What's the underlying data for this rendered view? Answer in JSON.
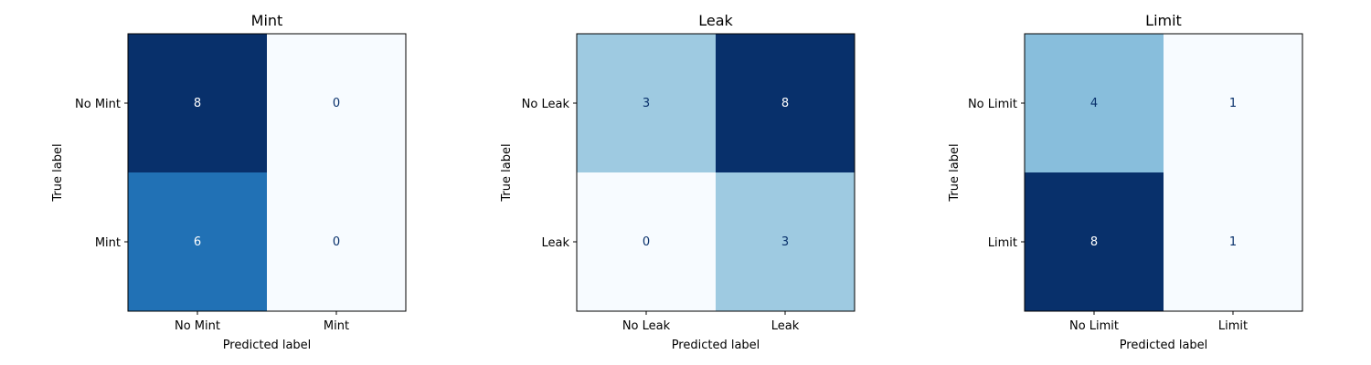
{
  "chart_data": [
    {
      "type": "heatmap",
      "title": "Mint",
      "xlabel": "Predicted label",
      "ylabel": "True label",
      "x_ticks": [
        "No Mint",
        "Mint"
      ],
      "y_ticks": [
        "No Mint",
        "Mint"
      ],
      "matrix": [
        [
          8,
          0
        ],
        [
          6,
          0
        ]
      ],
      "colormap": "Blues",
      "grid": false
    },
    {
      "type": "heatmap",
      "title": "Leak",
      "xlabel": "Predicted label",
      "ylabel": "True label",
      "x_ticks": [
        "No Leak",
        "Leak"
      ],
      "y_ticks": [
        "No Leak",
        "Leak"
      ],
      "matrix": [
        [
          3,
          8
        ],
        [
          0,
          3
        ]
      ],
      "colormap": "Blues",
      "grid": false
    },
    {
      "type": "heatmap",
      "title": "Limit",
      "xlabel": "Predicted label",
      "ylabel": "True label",
      "x_ticks": [
        "No Limit",
        "Limit"
      ],
      "y_ticks": [
        "No Limit",
        "Limit"
      ],
      "matrix": [
        [
          4,
          1
        ],
        [
          8,
          1
        ]
      ],
      "colormap": "Blues",
      "grid": false
    }
  ]
}
